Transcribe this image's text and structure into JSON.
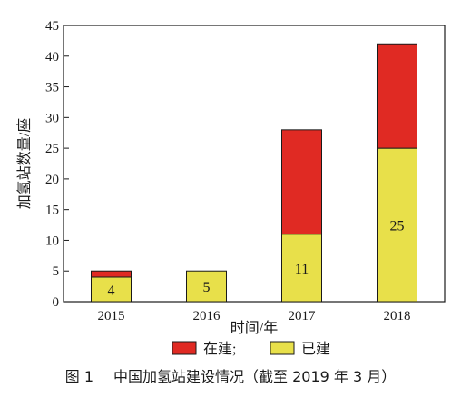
{
  "chart_data": {
    "type": "bar",
    "stacked": true,
    "categories": [
      "2015",
      "2016",
      "2017",
      "2018"
    ],
    "series": [
      {
        "name": "已建",
        "color": "#e8e04a",
        "values": [
          4,
          5,
          11,
          25
        ]
      },
      {
        "name": "在建;",
        "color": "#e02a23",
        "values": [
          1,
          0,
          17,
          17
        ]
      }
    ],
    "data_labels": [
      "4",
      "5",
      "11",
      "25"
    ],
    "xlabel": "时间/年",
    "ylabel": "加氢站数量/座",
    "ylim": [
      0,
      45
    ],
    "yticks": [
      0,
      5,
      10,
      15,
      20,
      25,
      30,
      35,
      40,
      45
    ],
    "grid": false,
    "legend_position": "bottom"
  },
  "caption": {
    "number": "图 1",
    "text": "中国加氢站建设情况（截至 2019 年 3 月）"
  }
}
